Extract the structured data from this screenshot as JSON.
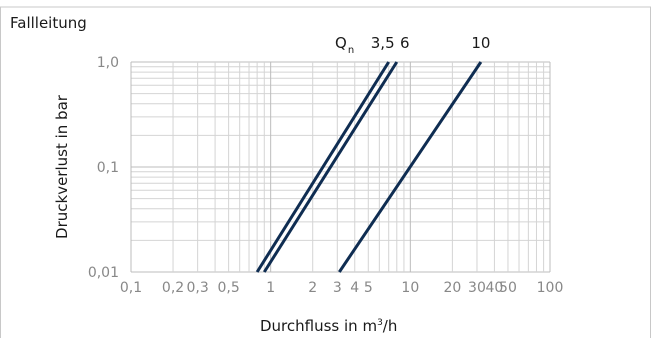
{
  "chart_data": {
    "type": "line",
    "title": "Fallleitung",
    "xlabel": "Durchfluss in m³/h",
    "ylabel": "Druckverlust in bar",
    "xscale": "log",
    "yscale": "log",
    "xlim": [
      0.1,
      100
    ],
    "ylim": [
      0.01,
      1.0
    ],
    "grid": true,
    "x_ticks": [
      {
        "value": 0.1,
        "label": "0,1"
      },
      {
        "value": 0.2,
        "label": "0,2"
      },
      {
        "value": 0.3,
        "label": "0,3"
      },
      {
        "value": 0.5,
        "label": "0,5"
      },
      {
        "value": 1,
        "label": "1"
      },
      {
        "value": 2,
        "label": "2"
      },
      {
        "value": 3,
        "label": "3"
      },
      {
        "value": 4,
        "label": "4"
      },
      {
        "value": 5,
        "label": "5"
      },
      {
        "value": 10,
        "label": "10"
      },
      {
        "value": 20,
        "label": "20"
      },
      {
        "value": 30,
        "label": "30"
      },
      {
        "value": 40,
        "label": "40"
      },
      {
        "value": 50,
        "label": "50"
      },
      {
        "value": 100,
        "label": "100"
      }
    ],
    "y_ticks": [
      {
        "value": 0.01,
        "label": "0,01"
      },
      {
        "value": 0.1,
        "label": "0,1"
      },
      {
        "value": 1.0,
        "label": "1,0"
      }
    ],
    "series_label_prefix": "Q",
    "series_label_subscript": "n",
    "series": [
      {
        "name": "3,5",
        "color": "#0f2d52",
        "x": [
          0.8,
          7.0
        ],
        "y": [
          0.01,
          1.0
        ]
      },
      {
        "name": "6",
        "color": "#0f2d52",
        "x": [
          0.9,
          8.0
        ],
        "y": [
          0.01,
          1.0
        ]
      },
      {
        "name": "10",
        "color": "#0f2d52",
        "x": [
          3.1,
          32.0
        ],
        "y": [
          0.01,
          1.0
        ]
      }
    ]
  }
}
